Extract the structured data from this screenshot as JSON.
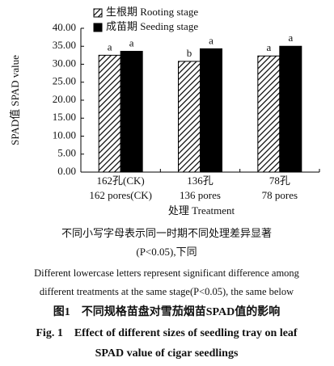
{
  "chart_data": {
    "type": "bar",
    "categories": [
      [
        "162孔(CK)",
        "162 pores(CK)"
      ],
      [
        "136孔",
        "136 pores"
      ],
      [
        "78孔",
        "78 pores"
      ]
    ],
    "series": [
      {
        "name": "生根期 Rooting stage",
        "color": "#000000",
        "hatch": true,
        "values": [
          32.5,
          30.8,
          32.3
        ],
        "letters": [
          "a",
          "b",
          "a"
        ]
      },
      {
        "name": "成苗期 Seeding stage",
        "color": "#000000",
        "hatch": false,
        "values": [
          33.6,
          34.3,
          35.0
        ],
        "letters": [
          "a",
          "a",
          "a"
        ]
      }
    ],
    "ylim": [
      0,
      40
    ],
    "yticks": [
      {
        "value": 0,
        "label": "0.00"
      },
      {
        "value": 5,
        "label": "5.00"
      },
      {
        "value": 10,
        "label": "10.00"
      },
      {
        "value": 15,
        "label": "15.00"
      },
      {
        "value": 20,
        "label": "20.00"
      },
      {
        "value": 25,
        "label": "25.00"
      },
      {
        "value": 30,
        "label": "30.00"
      },
      {
        "value": 35,
        "label": "35.00"
      },
      {
        "value": 40,
        "label": "40.00"
      }
    ],
    "xlabel": "处理 Treatment",
    "ylabel": "SPAD值 SPAD value",
    "notes": [
      "不同小写字母表示同一时期不同处理差异显著",
      "(P<0.05),下同",
      "Different lowercase letters represent significant difference among",
      "different treatments at the same stage(P<0.05), the same below"
    ],
    "captions": [
      "图1　不同规格苗盘对雪茄烟苗SPAD值的影响",
      "Fig. 1　Effect of different sizes of seedling tray on leaf",
      "SPAD value of cigar seedlings"
    ]
  }
}
